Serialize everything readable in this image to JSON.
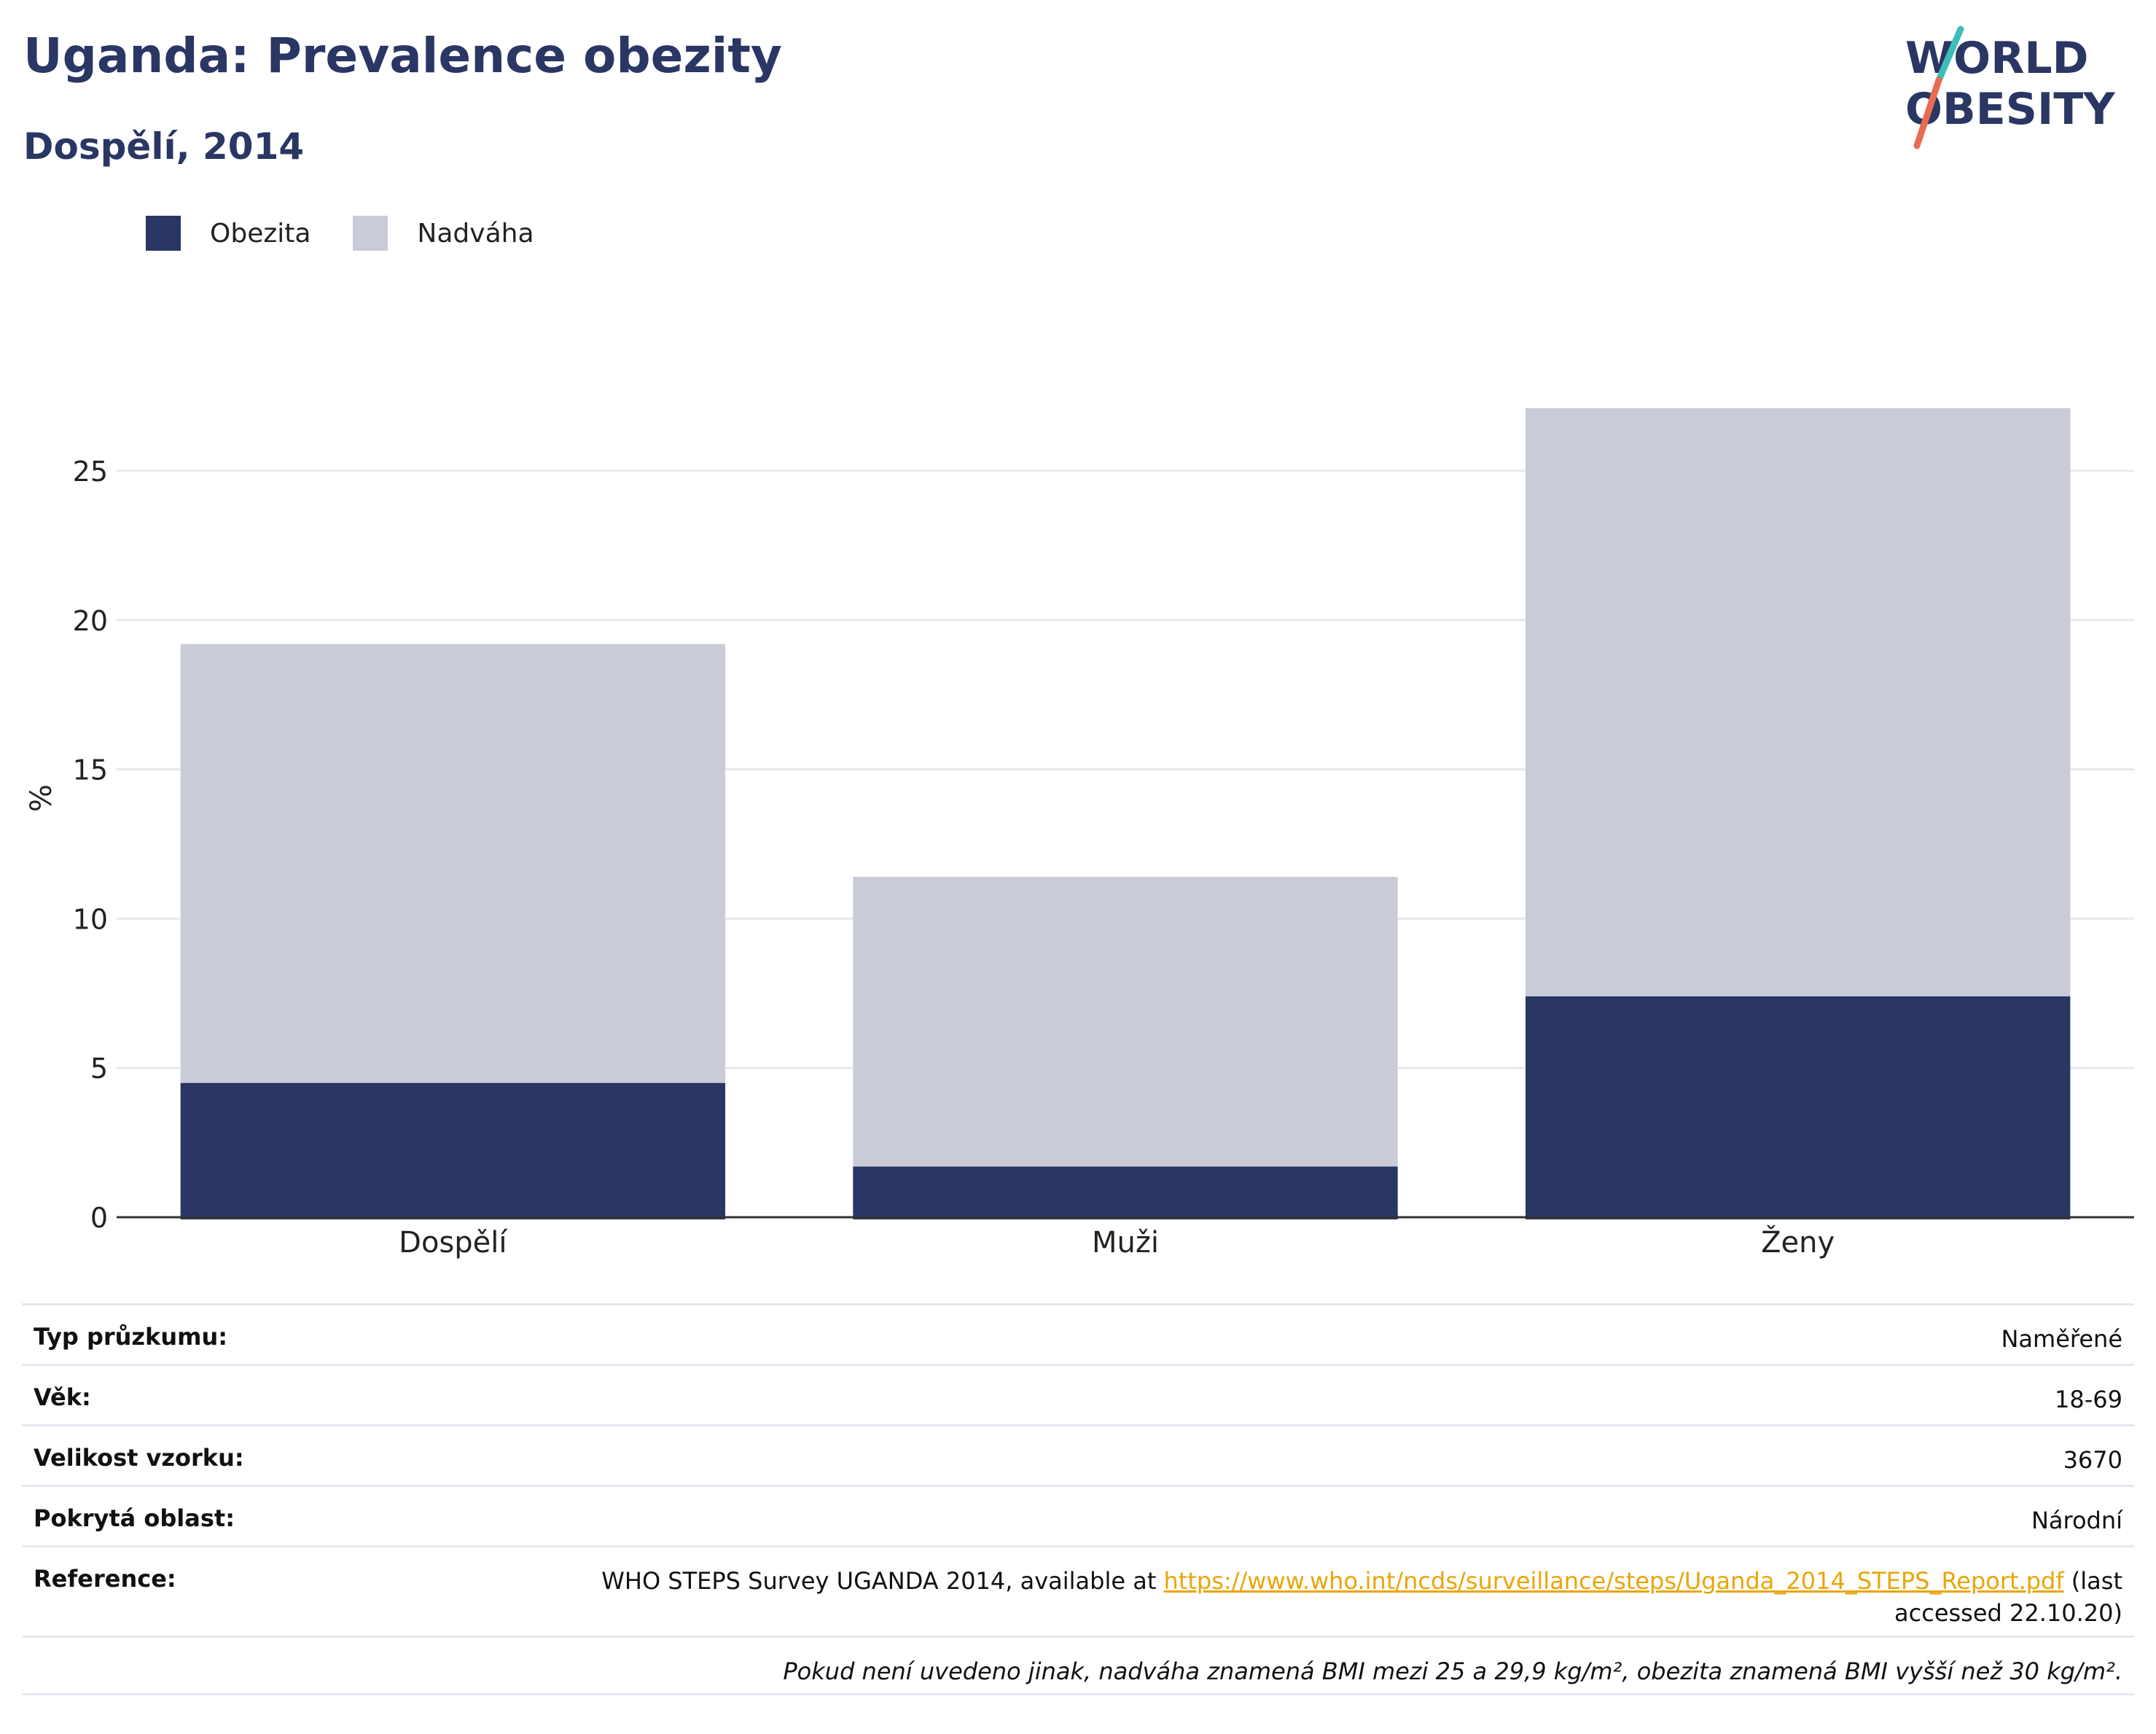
{
  "header": {
    "title": "Uganda: Prevalence obezity",
    "subtitle": "Dospělí, 2014"
  },
  "logo": {
    "line1": "WORLD",
    "line2": "OBESITY",
    "colors": {
      "text": "#2a3663",
      "slash_top": "#3dbfb8",
      "slash_bottom": "#e96b54"
    }
  },
  "legend": [
    {
      "label": "Obezita",
      "color": "#2a3663"
    },
    {
      "label": "Nadváha",
      "color": "#c9cbd7"
    }
  ],
  "chart_data": {
    "type": "bar",
    "stacked": true,
    "categories": [
      "Dospělí",
      "Muži",
      "Ženy"
    ],
    "series": [
      {
        "name": "Obezita",
        "values": [
          4.5,
          1.7,
          7.4
        ],
        "color": "#2a3663"
      },
      {
        "name": "Nadváha",
        "values": [
          14.7,
          9.7,
          19.7
        ],
        "color": "#c9cbd7"
      }
    ],
    "ylabel": "%",
    "ylim": [
      0,
      27.1
    ],
    "yticks": [
      0,
      5,
      10,
      15,
      20,
      25
    ],
    "grid": true,
    "legend_position": "top-left"
  },
  "info": {
    "rows": [
      {
        "label": "Typ průzkumu:",
        "value": "Naměřené"
      },
      {
        "label": "Věk:",
        "value": "18-69"
      },
      {
        "label": "Velikost vzorku:",
        "value": "3670"
      },
      {
        "label": "Pokrytá oblast:",
        "value": "Národní"
      }
    ],
    "reference": {
      "label": "Reference:",
      "text_before": "WHO STEPS Survey UGANDA 2014, available at ",
      "link": "https://www.who.int/ncds/surveillance/steps/Uganda_2014_STEPS_Report.pdf",
      "text_after": " (last accessed 22.10.20)"
    },
    "note": "Pokud není uvedeno jinak, nadváha znamená BMI mezi 25 a 29,9 kg/m², obezita znamená BMI vyšší než 30 kg/m²."
  }
}
